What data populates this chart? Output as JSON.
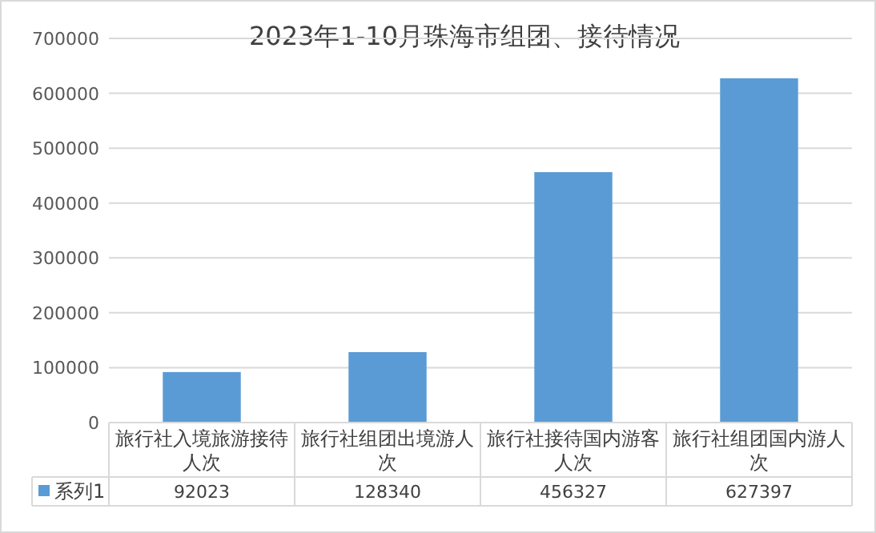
{
  "chart_data": {
    "type": "bar",
    "title": "2023年1-10月珠海市组团、接待情况",
    "categories": [
      "旅行社入境旅游接待人次",
      "旅行社组团出境游人次",
      "旅行社接待国内游客人次",
      "旅行社组团国内游人次"
    ],
    "series": [
      {
        "name": "系列1",
        "color": "#5b9bd5",
        "values": [
          92023,
          128340,
          456327,
          627397
        ]
      }
    ],
    "ylim": [
      0,
      700000
    ],
    "yticks": [
      0,
      100000,
      200000,
      300000,
      400000,
      500000,
      600000,
      700000
    ],
    "grid": "y",
    "data_labels": true,
    "legend": "bottom"
  }
}
